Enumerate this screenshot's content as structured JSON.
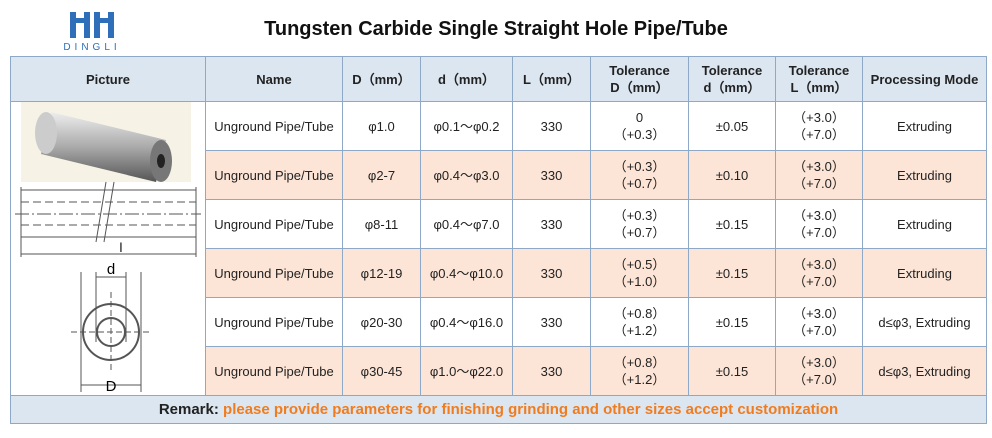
{
  "logo": {
    "text": "DINGLI"
  },
  "title": "Tungsten Carbide Single Straight Hole Pipe/Tube",
  "table": {
    "header": [
      [
        "Picture"
      ],
      [
        "Name"
      ],
      [
        "D（mm）"
      ],
      [
        "d（mm）"
      ],
      [
        "L（mm）"
      ],
      [
        "Tolerance",
        "D（mm）"
      ],
      [
        "Tolerance",
        "d（mm）"
      ],
      [
        "Tolerance",
        "L（mm）"
      ],
      [
        "Processing Mode"
      ]
    ],
    "rows": [
      [
        [
          "Unground Pipe/Tube"
        ],
        [
          "φ1.0"
        ],
        [
          "φ0.1～φ0.2"
        ],
        [
          "330"
        ],
        [
          "0",
          "（+0.3）"
        ],
        [
          "±0.05"
        ],
        [
          "（+3.0）",
          "（+7.0）"
        ],
        [
          "Extruding"
        ]
      ],
      [
        [
          "Unground Pipe/Tube"
        ],
        [
          "φ2-7"
        ],
        [
          "φ0.4～φ3.0"
        ],
        [
          "330"
        ],
        [
          "（+0.3）",
          "（+0.7）"
        ],
        [
          "±0.10"
        ],
        [
          "（+3.0）",
          "（+7.0）"
        ],
        [
          "Extruding"
        ]
      ],
      [
        [
          "Unground Pipe/Tube"
        ],
        [
          "φ8-11"
        ],
        [
          "φ0.4～φ7.0"
        ],
        [
          "330"
        ],
        [
          "（+0.3）",
          "（+0.7）"
        ],
        [
          "±0.15"
        ],
        [
          "（+3.0）",
          "（+7.0）"
        ],
        [
          "Extruding"
        ]
      ],
      [
        [
          "Unground Pipe/Tube"
        ],
        [
          "φ12-19"
        ],
        [
          "φ0.4～φ10.0"
        ],
        [
          "330"
        ],
        [
          "（+0.5）",
          "（+1.0）"
        ],
        [
          "±0.15"
        ],
        [
          "（+3.0）",
          "（+7.0）"
        ],
        [
          "Extruding"
        ]
      ],
      [
        [
          "Unground Pipe/Tube"
        ],
        [
          "φ20-30"
        ],
        [
          "φ0.4～φ16.0"
        ],
        [
          "330"
        ],
        [
          "（+0.8）",
          "（+1.2）"
        ],
        [
          "±0.15"
        ],
        [
          "（+3.0）",
          "（+7.0）"
        ],
        [
          "d≤φ3, Extruding"
        ]
      ],
      [
        [
          "Unground Pipe/Tube"
        ],
        [
          "φ30-45"
        ],
        [
          "φ1.0～φ22.0"
        ],
        [
          "330"
        ],
        [
          "（+0.8）",
          "（+1.2）"
        ],
        [
          "±0.15"
        ],
        [
          "（+3.0）",
          "（+7.0）"
        ],
        [
          "d≤φ3, Extruding"
        ]
      ]
    ]
  },
  "picture": {
    "labels": [
      "d",
      "l",
      "D"
    ]
  },
  "remark": {
    "label": "Remark:",
    "text": "please provide parameters for finishing grinding  and other sizes accept customization"
  }
}
